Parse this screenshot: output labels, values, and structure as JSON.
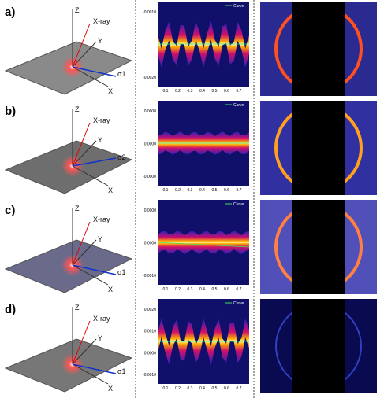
{
  "panels": [
    {
      "label": "a)",
      "axes": {
        "z": "Z",
        "ray": "X-ray",
        "y": "Y",
        "sigma": "σ1",
        "x": "X"
      },
      "plot": {
        "legend": "Curve",
        "xticks": [
          "0.1",
          "0.2",
          "0.3",
          "0.4",
          "0.5",
          "0.6",
          "0.7"
        ],
        "yticks": [
          "-0.0010",
          "-0.0020"
        ]
      }
    },
    {
      "label": "b)",
      "axes": {
        "z": "Z",
        "ray": "X-ray",
        "y": "Y",
        "sigma": "σ2",
        "x": "X"
      },
      "plot": {
        "legend": "Curve",
        "xticks": [
          "0.1",
          "0.2",
          "0.3",
          "0.4",
          "0.5",
          "0.6",
          "0.7"
        ],
        "yticks": [
          "0.0000",
          "0.0000",
          "-0.0000"
        ]
      }
    },
    {
      "label": "c)",
      "axes": {
        "z": "Z",
        "ray": "X-ray",
        "y": "Y",
        "sigma": "σ1",
        "x": "X"
      },
      "plot": {
        "legend": "Curve",
        "xticks": [
          "0.1",
          "0.2",
          "0.3",
          "0.4",
          "0.5",
          "0.6",
          "0.7"
        ],
        "yticks": [
          "0.0000",
          "0.0000",
          "-0.0010"
        ]
      }
    },
    {
      "label": "d)",
      "axes": {
        "z": "Z",
        "ray": "X-ray",
        "y": "Y",
        "sigma": "σ1",
        "x": "X"
      },
      "plot": {
        "legend": "Curve",
        "xticks": [
          "0.1",
          "0.2",
          "0.3",
          "0.4",
          "0.5",
          "0.6",
          "0.7"
        ],
        "yticks": [
          "0.0020",
          "0.0010",
          "0.0000",
          "-0.0010"
        ]
      }
    }
  ]
}
